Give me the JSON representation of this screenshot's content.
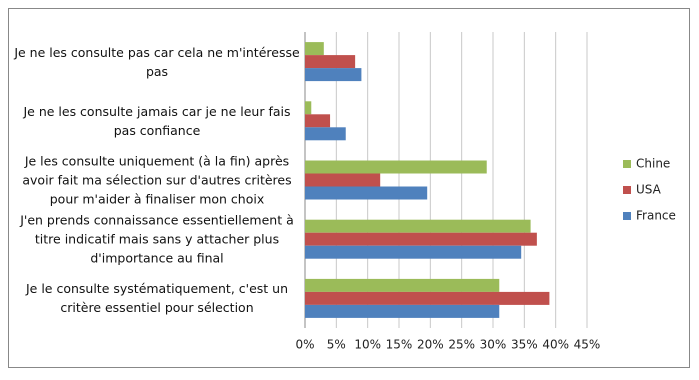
{
  "chart_data": {
    "type": "hbar",
    "categories": [
      "Je ne les consulte pas car cela ne m'intéresse pas",
      "Je ne les consulte jamais car je ne leur fais pas confiance",
      "Je les consulte uniquement (à la fin) après avoir fait ma sélection sur d'autres critères pour m'aider à finaliser mon choix",
      "J'en prends connaissance essentiellement à titre indicatif mais sans y attacher plus d'importance au final",
      "Je le consulte systématiquement, c'est un critère essentiel pour sélection"
    ],
    "series": [
      {
        "name": "Chine",
        "color": "#9bbb59",
        "values": [
          3,
          1,
          29,
          36,
          31
        ]
      },
      {
        "name": "USA",
        "color": "#c0504d",
        "values": [
          8,
          4,
          12,
          37,
          39
        ]
      },
      {
        "name": "France",
        "color": "#4f81bd",
        "values": [
          9,
          6.5,
          19.5,
          34.5,
          31
        ]
      }
    ],
    "xlim": [
      0,
      45
    ],
    "xticks": [
      {
        "value": 0,
        "label": "0%"
      },
      {
        "value": 5,
        "label": "5%"
      },
      {
        "value": 10,
        "label": "10%"
      },
      {
        "value": 15,
        "label": "15%"
      },
      {
        "value": 20,
        "label": "20%"
      },
      {
        "value": 25,
        "label": "25%"
      },
      {
        "value": 30,
        "label": "30%"
      },
      {
        "value": 35,
        "label": "35%"
      },
      {
        "value": 40,
        "label": "40%"
      },
      {
        "value": 45,
        "label": "45%"
      }
    ],
    "grid": true,
    "legend": "right"
  }
}
